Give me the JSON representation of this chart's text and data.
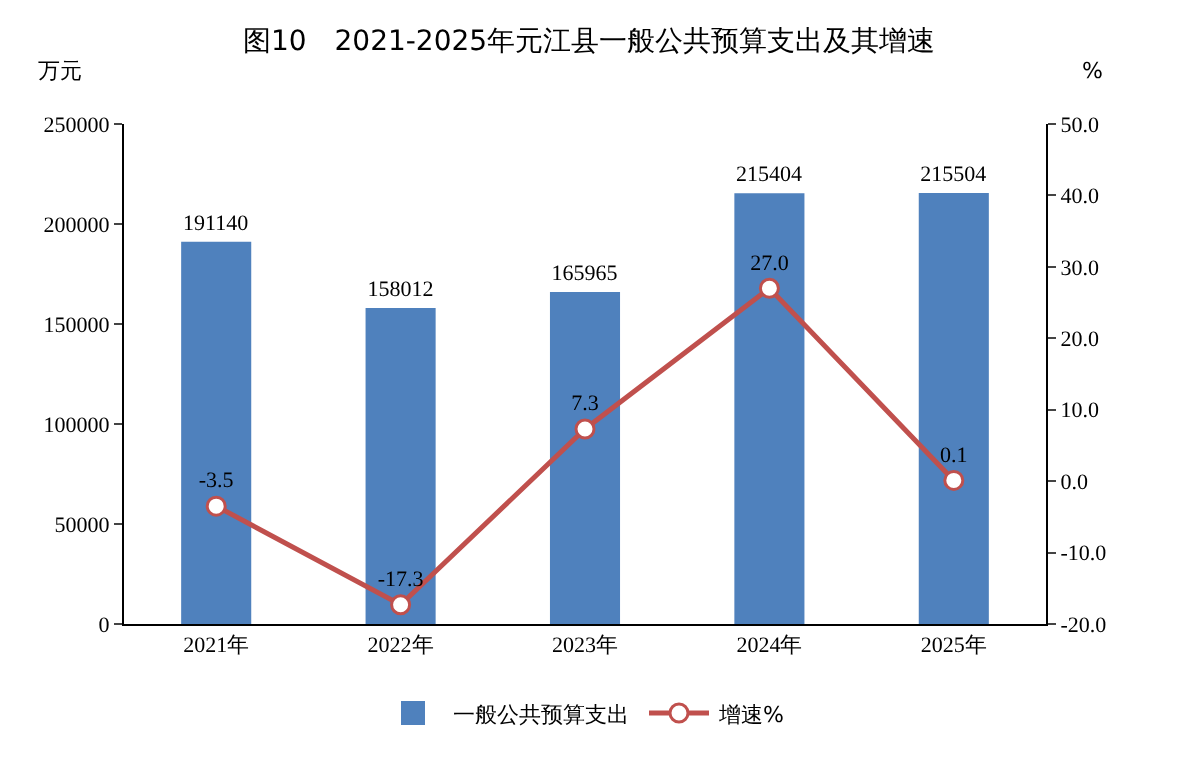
{
  "chart_data": {
    "type": "bar",
    "title": "图10　2021-2025年元江县一般公共预算支出及其增速",
    "ylabel": "万元",
    "y2label": "%",
    "categories": [
      "2021年",
      "2022年",
      "2023年",
      "2024年",
      "2025年"
    ],
    "series": [
      {
        "name": "一般公共预算支出",
        "color": "#4f81bd",
        "values": [
          191140,
          158012,
          165965,
          215404,
          215504
        ],
        "value_labels": [
          "191140",
          "158012",
          "165965",
          "215404",
          "215504"
        ]
      },
      {
        "name": "增速%",
        "type": "line",
        "axis": "y2",
        "color": "#c0504d",
        "marker": "circle",
        "values": [
          -3.5,
          -17.3,
          7.3,
          27.0,
          0.1
        ],
        "value_labels": [
          "-3.5",
          "-17.3",
          "7.3",
          "27.0",
          "0.1"
        ]
      }
    ],
    "ylim": [
      0,
      250000
    ],
    "yticks": [
      0,
      50000,
      100000,
      150000,
      200000,
      250000
    ],
    "y2lim": [
      -20,
      50
    ],
    "y2ticks": [
      {
        "value": -20,
        "label": "-20.0"
      },
      {
        "value": -10,
        "label": "-10.0"
      },
      {
        "value": 0,
        "label": "0.0"
      },
      {
        "value": 10,
        "label": "10.0"
      },
      {
        "value": 20,
        "label": "20.0"
      },
      {
        "value": 30,
        "label": "30.0"
      },
      {
        "value": 40,
        "label": "40.0"
      },
      {
        "value": 50,
        "label": "50.0"
      }
    ],
    "grid": false,
    "legend": "bottom"
  }
}
